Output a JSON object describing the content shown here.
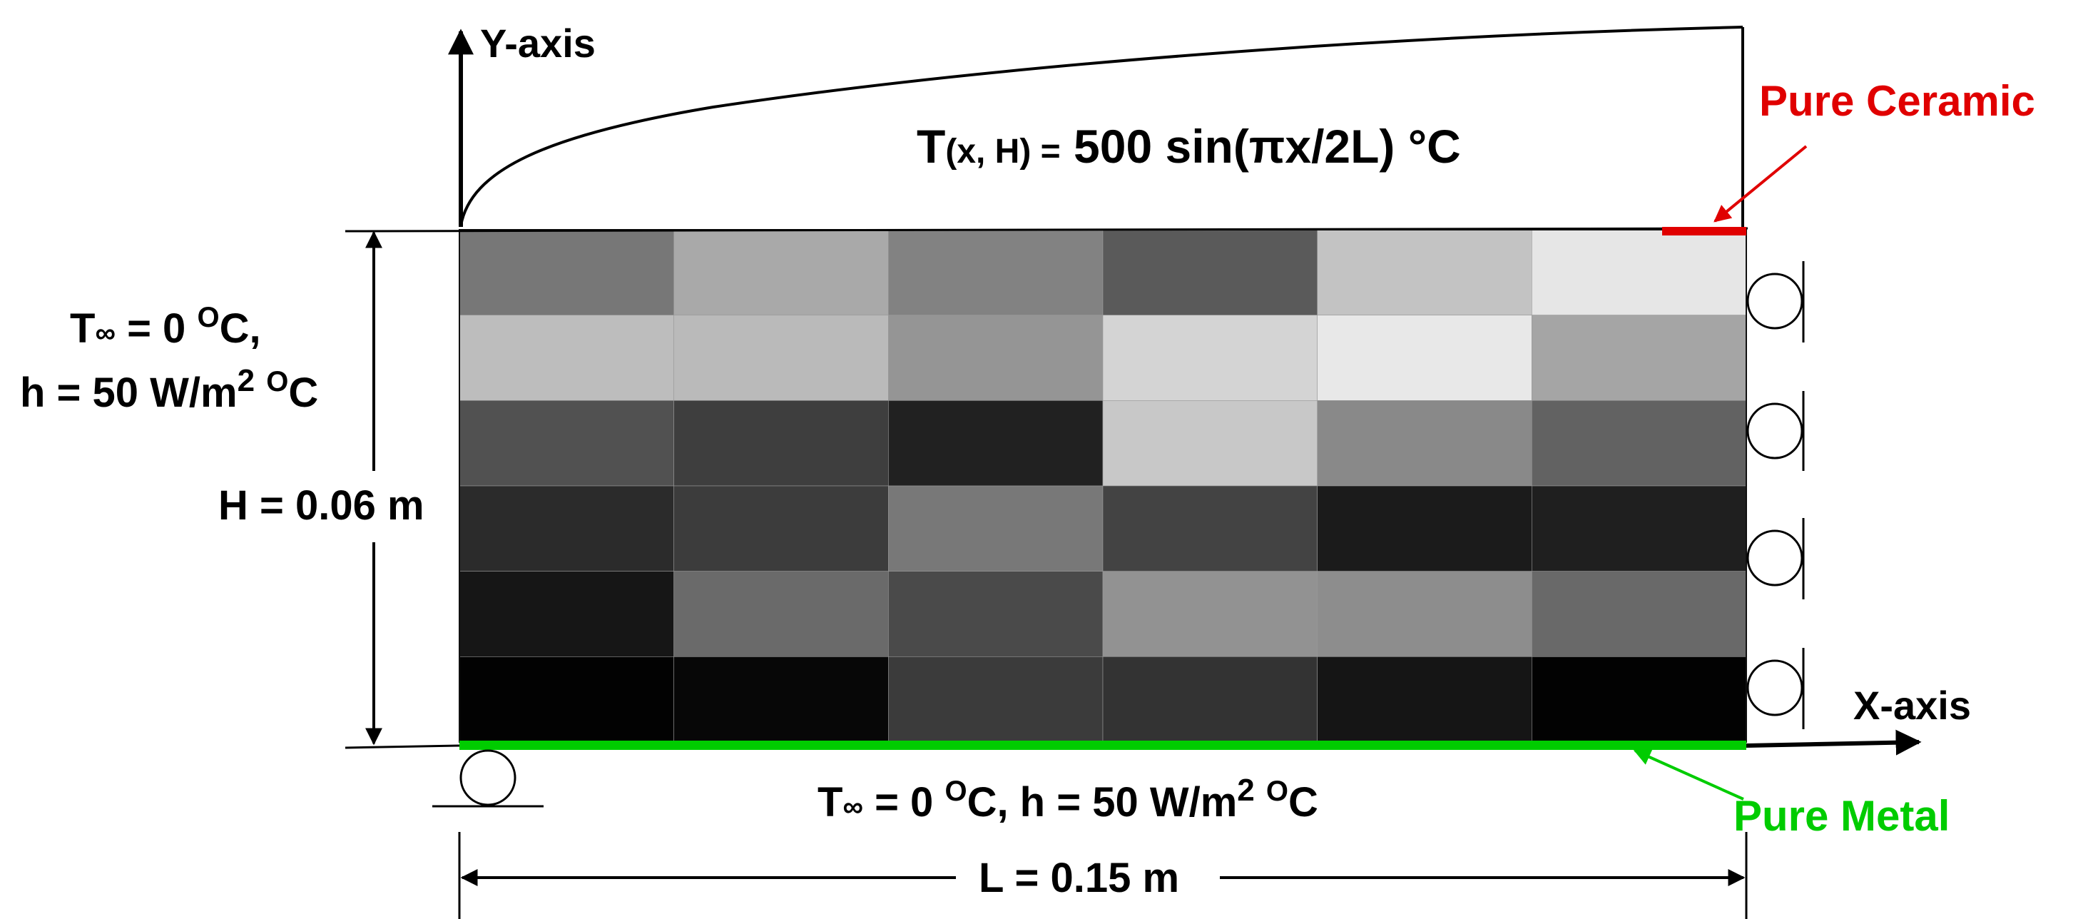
{
  "axes": {
    "y_label": "Y-axis",
    "x_label": "X-axis"
  },
  "formula": {
    "prefix": "T",
    "args": "(x, H) =",
    "body": " 500 sin(πx/2L) °C"
  },
  "materials": {
    "ceramic": {
      "label": "Pure Ceramic",
      "color": "#e00000"
    },
    "metal": {
      "label": "Pure Metal",
      "color": "#00cc00"
    }
  },
  "left_bc": {
    "line1": {
      "t": "T",
      "inf": "∞",
      "rest": " = 0 ",
      "o": "O",
      "c": "C,"
    },
    "line2": {
      "h": "h = 50 W/m",
      "sq": "2",
      "sp": " ",
      "o": "O",
      "c": "C"
    }
  },
  "height_label": "H = 0.06 m",
  "bottom_bc": {
    "t": "T",
    "inf": "∞",
    "a": " = 0 ",
    "o1": "O",
    "b": "C, h = 50 W/m",
    "sq": "2",
    "c": " ",
    "o2": "O",
    "d": "C"
  },
  "length_label": "L = 0.15 m",
  "grid": {
    "rows": 6,
    "cols": 6,
    "grays": [
      [
        "#777777",
        "#a9a9a9",
        "#828282",
        "#5a5a5a",
        "#c3c3c3",
        "#e6e6e6"
      ],
      [
        "#bdbdbd",
        "#bababa",
        "#959595",
        "#d4d4d4",
        "#e8e8e8",
        "#a5a5a5"
      ],
      [
        "#515151",
        "#3e3e3e",
        "#212121",
        "#c8c8c8",
        "#898989",
        "#626262"
      ],
      [
        "#2b2b2b",
        "#3c3c3c",
        "#787878",
        "#434343",
        "#1b1b1b",
        "#1f1f1f"
      ],
      [
        "#161616",
        "#6a6a6a",
        "#4a4a4a",
        "#929292",
        "#8d8d8d",
        "#696969"
      ],
      [
        "#020202",
        "#070707",
        "#3b3b3b",
        "#333333",
        "#151515",
        "#020202"
      ]
    ]
  }
}
